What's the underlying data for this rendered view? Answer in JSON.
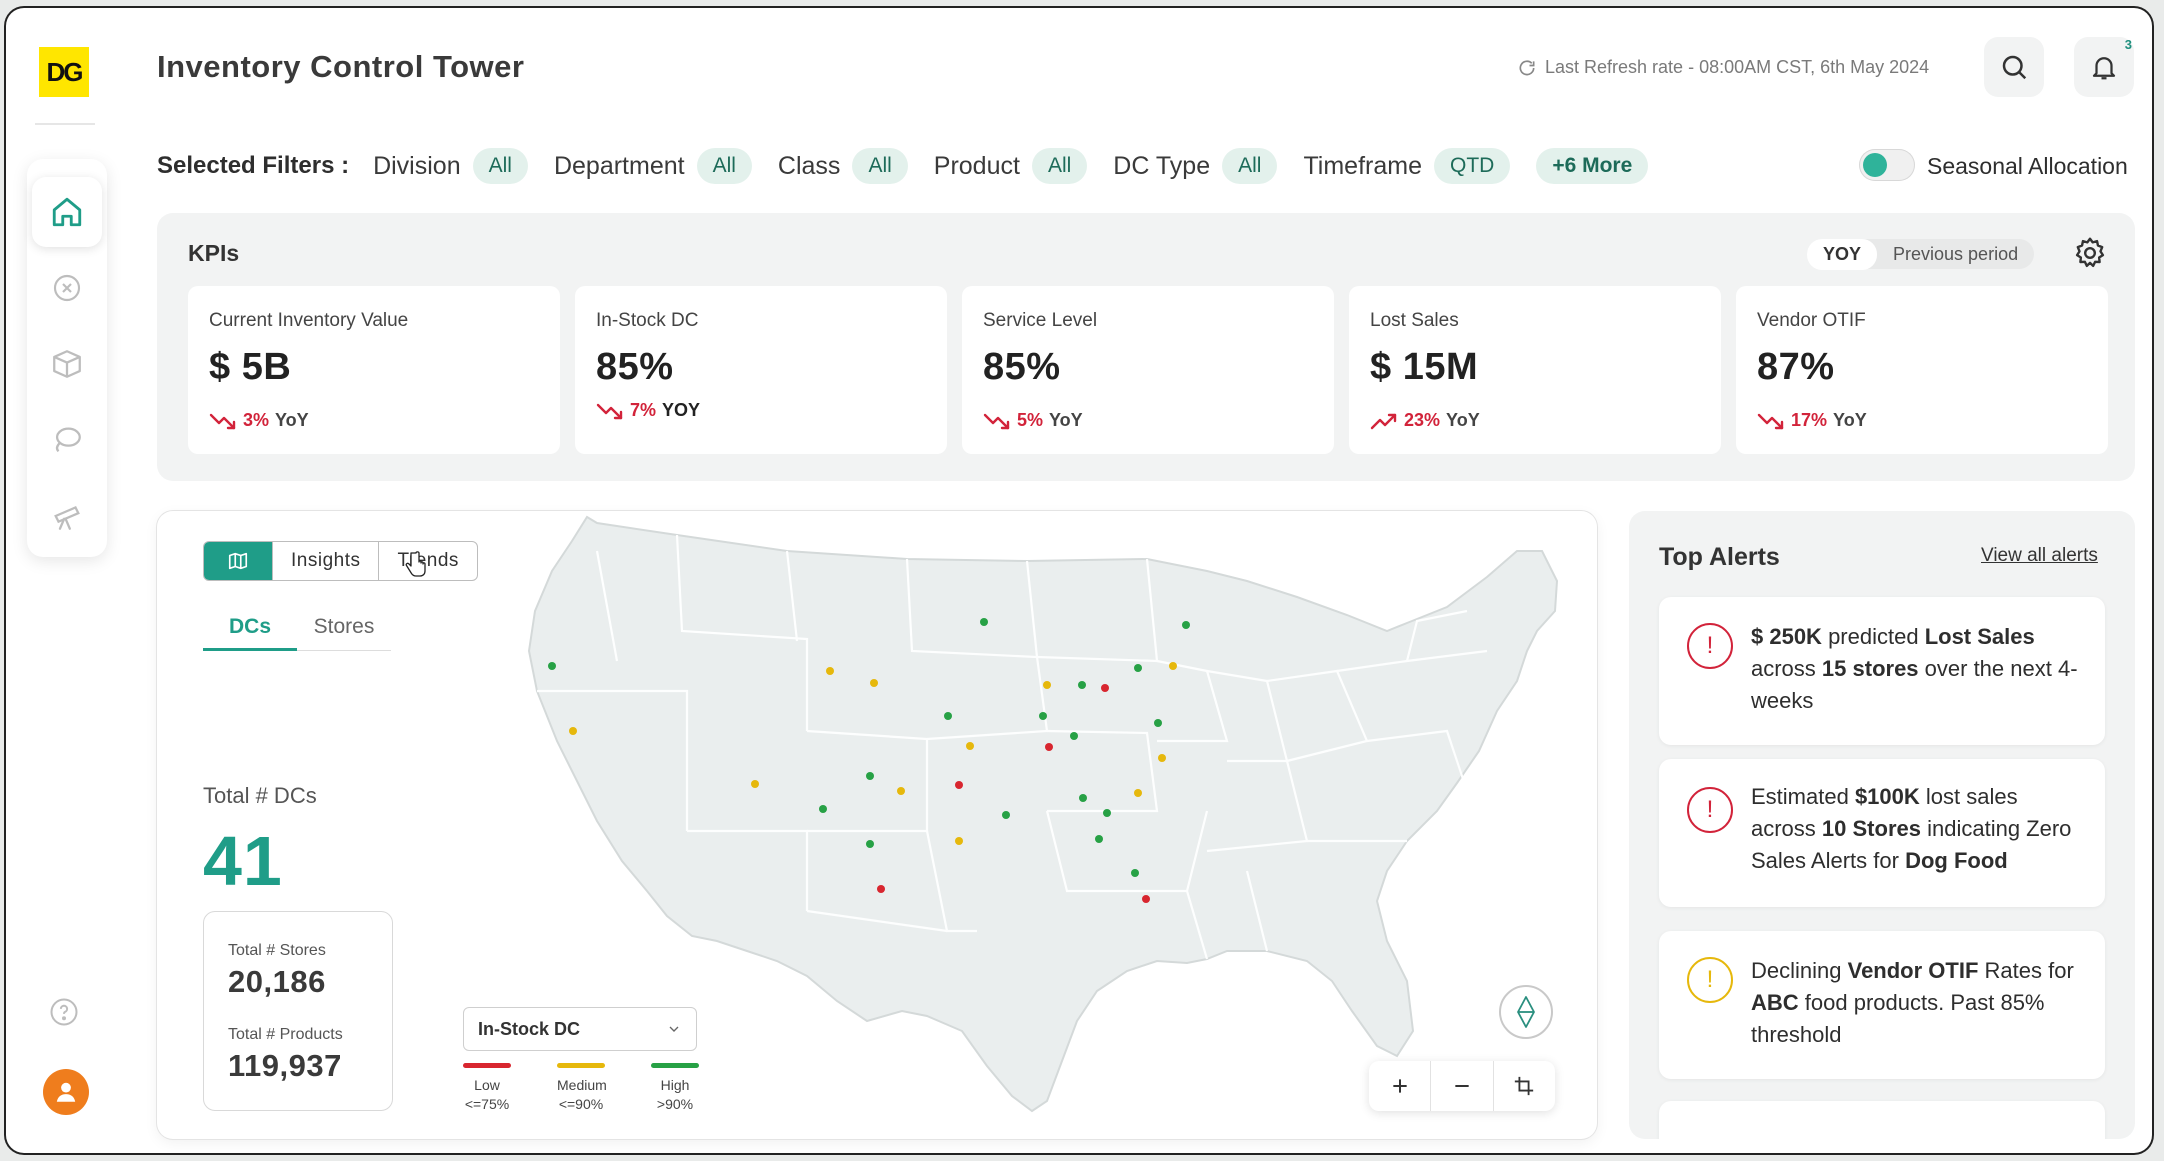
{
  "app": {
    "logo": "DG",
    "title": "Inventory Control Tower",
    "refresh": "Last Refresh rate - 08:00AM CST, 6th May 2024",
    "notifications_count": "3"
  },
  "sidebar": {
    "items": [
      {
        "icon": "home-icon",
        "active": true
      },
      {
        "icon": "close-circle-icon",
        "active": false
      },
      {
        "icon": "box-icon",
        "active": false
      },
      {
        "icon": "lasso-icon",
        "active": false
      },
      {
        "icon": "telescope-icon",
        "active": false
      }
    ]
  },
  "filters": {
    "label": "Selected Filters :",
    "items": [
      {
        "name": "Division",
        "value": "All"
      },
      {
        "name": "Department",
        "value": "All"
      },
      {
        "name": "Class",
        "value": "All"
      },
      {
        "name": "Product",
        "value": "All"
      },
      {
        "name": "DC Type",
        "value": "All"
      },
      {
        "name": "Timeframe",
        "value": "QTD"
      }
    ],
    "more": "+6 More",
    "toggle_label": "Seasonal Allocation"
  },
  "kpis": {
    "title": "KPIs",
    "compare_on": "YOY",
    "compare_off": "Previous period",
    "cards": [
      {
        "label": "Current Inventory Value",
        "value": "$ 5B",
        "pct": "3%",
        "suffix": "YoY",
        "dir": "down"
      },
      {
        "label": "In-Stock DC",
        "value": "85%",
        "pct": "7%",
        "suffix": "YOY",
        "dir": "down"
      },
      {
        "label": "Service Level",
        "value": "85%",
        "pct": "5%",
        "suffix": "YoY",
        "dir": "down"
      },
      {
        "label": "Lost Sales",
        "value": "$ 15M",
        "pct": "23%",
        "suffix": "YoY",
        "dir": "up"
      },
      {
        "label": "Vendor OTIF",
        "value": "87%",
        "pct": "17%",
        "suffix": "YoY",
        "dir": "down"
      }
    ]
  },
  "map_panel": {
    "tabs": [
      "Insights",
      "Trends"
    ],
    "sub_tabs": [
      "DCs",
      "Stores"
    ],
    "total_label": "Total # DCs",
    "total_value": "41",
    "stores_label": "Total # Stores",
    "stores_value": "20,186",
    "products_label": "Total # Products",
    "products_value": "119,937",
    "metric": "In-Stock DC",
    "legend": [
      {
        "label": "Low",
        "range": "<=75%",
        "color": "#d8262f"
      },
      {
        "label": "Medium",
        "range": "<=90%",
        "color": "#e6b80c"
      },
      {
        "label": "High",
        "range": ">90%",
        "color": "#27a145"
      }
    ]
  },
  "alerts": {
    "title": "Top Alerts",
    "view_all": "View all alerts",
    "items": [
      {
        "severity": "high",
        "color": "#d2233a",
        "t1": "$ 250K",
        "t2": " predicted ",
        "t3": "Lost Sales",
        "t4": " across ",
        "t5": "15 stores",
        "t6": " over the next 4-weeks"
      },
      {
        "severity": "high",
        "color": "#d2233a",
        "t1": "Estimated ",
        "t2": "$100K",
        "t3": " lost sales across ",
        "t4": "10 Stores",
        "t5": " indicating Zero Sales Alerts for ",
        "t6": "Dog Food"
      },
      {
        "severity": "medium",
        "color": "#e6b80c",
        "t1": "Declining ",
        "t2": "Vendor OTIF",
        "t3": " Rates for ",
        "t4": "ABC",
        "t5": " food products. Past 85% threshold",
        "t6": ""
      }
    ]
  }
}
